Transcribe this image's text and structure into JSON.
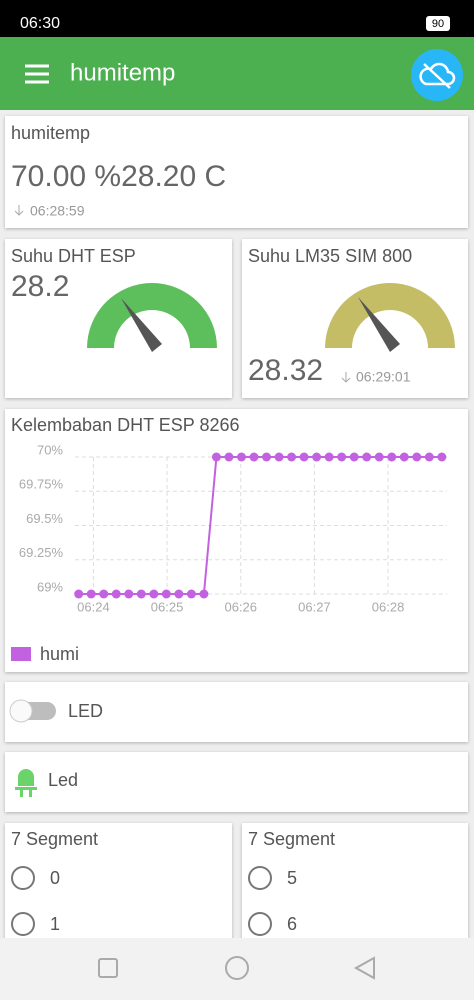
{
  "status_bar": {
    "time": "06:30",
    "battery": "90"
  },
  "app_bar": {
    "title": "humitemp"
  },
  "value_card": {
    "title": "humitemp",
    "value": "70.00 %28.20 C",
    "timestamp": "06:28:59"
  },
  "gauges": [
    {
      "title": "Suhu DHT ESP",
      "value": "28.2",
      "color": "#5cbf5c"
    },
    {
      "title": "Suhu LM35 SIM 800",
      "value": "28.32",
      "timestamp": "06:29:01",
      "color": "#c4bd66"
    }
  ],
  "chart_data": {
    "type": "line",
    "title": "Kelembaban DHT ESP 8266",
    "x": [
      23.8,
      23.97,
      24.14,
      24.31,
      24.48,
      24.65,
      24.82,
      24.99,
      25.16,
      25.33,
      25.5,
      25.67,
      25.84,
      26.01,
      26.18,
      26.35,
      26.52,
      26.69,
      26.86,
      27.03,
      27.2,
      27.37,
      27.54,
      27.71,
      27.88,
      28.05,
      28.22,
      28.39,
      28.56,
      28.73
    ],
    "series": [
      {
        "name": "humi",
        "color": "#c362e0",
        "values": [
          69,
          69,
          69,
          69,
          69,
          69,
          69,
          69,
          69,
          69,
          69,
          70,
          70,
          70,
          70,
          70,
          70,
          70,
          70,
          70,
          70,
          70,
          70,
          70,
          70,
          70,
          70,
          70,
          70,
          70
        ]
      }
    ],
    "xlim": [
      23.75,
      28.8
    ],
    "xticks": [
      {
        "value": 24,
        "label": "06:24"
      },
      {
        "value": 25,
        "label": "06:25"
      },
      {
        "value": 26,
        "label": "06:26"
      },
      {
        "value": 27,
        "label": "06:27"
      },
      {
        "value": 28,
        "label": "06:28"
      }
    ],
    "ylim": [
      69,
      70
    ],
    "yticks": [
      {
        "value": 69,
        "label": "69%"
      },
      {
        "value": 69.25,
        "label": "69.25%"
      },
      {
        "value": 69.5,
        "label": "69.5%"
      },
      {
        "value": 69.75,
        "label": "69.75%"
      },
      {
        "value": 70,
        "label": "70%"
      }
    ],
    "grid": true
  },
  "switch": {
    "label": "LED"
  },
  "led": {
    "label": "Led"
  },
  "segments": [
    {
      "title": "7 Segment",
      "options": [
        "0",
        "1"
      ]
    },
    {
      "title": "7 Segment",
      "options": [
        "5",
        "6"
      ]
    }
  ]
}
